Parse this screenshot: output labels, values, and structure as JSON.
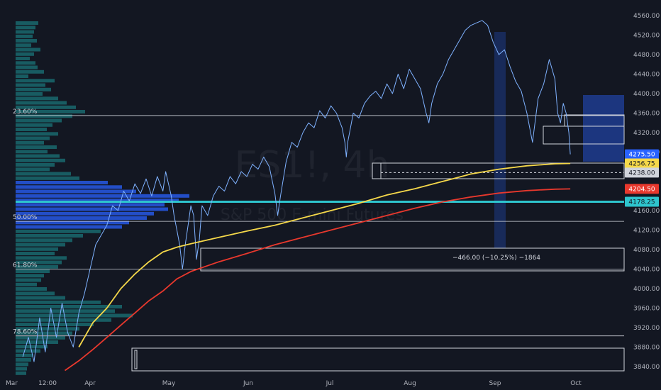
{
  "watermark": {
    "ticker": "ES1!, 4h",
    "name": "S&P 500 E-mini Futures"
  },
  "colors": {
    "background": "#131722",
    "price": "#7fb2ff",
    "sma_fast": "#f5d84a",
    "sma_slow": "#e8382d",
    "level_highlight": "#2ec5ce",
    "zone_blue": "#1e3a8a",
    "volume_profile_teal": "#1c8a8e",
    "volume_profile_blue": "#2962ff"
  },
  "chart_data": {
    "type": "line",
    "ylim": [
      3820,
      4580
    ],
    "x_ticks": [
      "Mar",
      "12:00",
      "Apr",
      "May",
      "Jun",
      "Jul",
      "Aug",
      "Sep",
      "Oct"
    ],
    "y_ticks": [
      4560.0,
      4520.0,
      4480.0,
      4440.0,
      4400.0,
      4360.0,
      4320.0,
      4280.0,
      4160.0,
      4120.0,
      4080.0,
      4040.0,
      4000.0,
      3960.0,
      3920.0,
      3880.0,
      3840.0
    ],
    "series": [
      {
        "key": "price",
        "points": [
          [
            0,
            3860
          ],
          [
            0.2,
            3900
          ],
          [
            0.4,
            3850
          ],
          [
            0.6,
            3940
          ],
          [
            0.8,
            3870
          ],
          [
            1.0,
            3960
          ],
          [
            1.2,
            3900
          ],
          [
            1.4,
            3970
          ],
          [
            1.6,
            3910
          ],
          [
            1.8,
            3880
          ],
          [
            2.0,
            3950
          ],
          [
            2.2,
            3990
          ],
          [
            2.4,
            4040
          ],
          [
            2.6,
            4090
          ],
          [
            2.8,
            4110
          ],
          [
            3.0,
            4130
          ],
          [
            3.2,
            4170
          ],
          [
            3.4,
            4160
          ],
          [
            3.6,
            4200
          ],
          [
            3.8,
            4180
          ],
          [
            4.0,
            4215
          ],
          [
            4.2,
            4195
          ],
          [
            4.4,
            4225
          ],
          [
            4.6,
            4190
          ],
          [
            4.8,
            4230
          ],
          [
            5.0,
            4200
          ],
          [
            5.1,
            4240
          ],
          [
            5.3,
            4190
          ],
          [
            5.4,
            4150
          ],
          [
            5.5,
            4120
          ],
          [
            5.6,
            4090
          ],
          [
            5.7,
            4040
          ],
          [
            5.8,
            4090
          ],
          [
            5.9,
            4130
          ],
          [
            6.0,
            4170
          ],
          [
            6.1,
            4150
          ],
          [
            6.2,
            4060
          ],
          [
            6.3,
            4100
          ],
          [
            6.4,
            4170
          ],
          [
            6.6,
            4150
          ],
          [
            6.8,
            4190
          ],
          [
            7.0,
            4210
          ],
          [
            7.2,
            4200
          ],
          [
            7.4,
            4230
          ],
          [
            7.6,
            4215
          ],
          [
            7.8,
            4240
          ],
          [
            8.0,
            4230
          ],
          [
            8.2,
            4255
          ],
          [
            8.4,
            4245
          ],
          [
            8.6,
            4270
          ],
          [
            8.8,
            4250
          ],
          [
            9.0,
            4195
          ],
          [
            9.1,
            4150
          ],
          [
            9.2,
            4190
          ],
          [
            9.4,
            4260
          ],
          [
            9.6,
            4300
          ],
          [
            9.8,
            4290
          ],
          [
            10.0,
            4320
          ],
          [
            10.2,
            4340
          ],
          [
            10.4,
            4330
          ],
          [
            10.6,
            4365
          ],
          [
            10.8,
            4350
          ],
          [
            11.0,
            4375
          ],
          [
            11.2,
            4360
          ],
          [
            11.4,
            4330
          ],
          [
            11.5,
            4300
          ],
          [
            11.55,
            4270
          ],
          [
            11.6,
            4300
          ],
          [
            11.7,
            4330
          ],
          [
            11.8,
            4360
          ],
          [
            12.0,
            4350
          ],
          [
            12.2,
            4380
          ],
          [
            12.4,
            4395
          ],
          [
            12.6,
            4405
          ],
          [
            12.8,
            4390
          ],
          [
            13.0,
            4420
          ],
          [
            13.2,
            4400
          ],
          [
            13.4,
            4440
          ],
          [
            13.6,
            4410
          ],
          [
            13.8,
            4450
          ],
          [
            14.0,
            4430
          ],
          [
            14.2,
            4410
          ],
          [
            14.4,
            4360
          ],
          [
            14.5,
            4340
          ],
          [
            14.6,
            4380
          ],
          [
            14.8,
            4420
          ],
          [
            15.0,
            4440
          ],
          [
            15.2,
            4470
          ],
          [
            15.4,
            4490
          ],
          [
            15.6,
            4510
          ],
          [
            15.8,
            4530
          ],
          [
            16.0,
            4540
          ],
          [
            16.2,
            4545
          ],
          [
            16.4,
            4550
          ],
          [
            16.6,
            4540
          ],
          [
            16.8,
            4505
          ],
          [
            17.0,
            4480
          ],
          [
            17.2,
            4490
          ],
          [
            17.4,
            4455
          ],
          [
            17.6,
            4425
          ],
          [
            17.8,
            4405
          ],
          [
            18.0,
            4360
          ],
          [
            18.2,
            4300
          ],
          [
            18.4,
            4390
          ],
          [
            18.6,
            4420
          ],
          [
            18.8,
            4470
          ],
          [
            19.0,
            4430
          ],
          [
            19.1,
            4360
          ],
          [
            19.2,
            4340
          ],
          [
            19.3,
            4380
          ],
          [
            19.4,
            4360
          ],
          [
            19.5,
            4320
          ],
          [
            19.55,
            4275.5
          ]
        ]
      },
      {
        "key": "sma_fast",
        "points": [
          [
            2.0,
            3880
          ],
          [
            2.5,
            3930
          ],
          [
            3.0,
            3960
          ],
          [
            3.5,
            4000
          ],
          [
            4.0,
            4030
          ],
          [
            4.5,
            4055
          ],
          [
            5.0,
            4075
          ],
          [
            5.5,
            4085
          ],
          [
            6.0,
            4092
          ],
          [
            7.0,
            4105
          ],
          [
            8.0,
            4118
          ],
          [
            9.0,
            4130
          ],
          [
            10.0,
            4145
          ],
          [
            11.0,
            4160
          ],
          [
            12.0,
            4175
          ],
          [
            13.0,
            4192
          ],
          [
            14.0,
            4205
          ],
          [
            15.0,
            4220
          ],
          [
            16.0,
            4235
          ],
          [
            17.0,
            4245
          ],
          [
            18.0,
            4252
          ],
          [
            19.0,
            4256
          ],
          [
            19.55,
            4256.75
          ]
        ]
      },
      {
        "key": "sma_slow",
        "points": [
          [
            1.5,
            3832
          ],
          [
            2.0,
            3852
          ],
          [
            2.5,
            3875
          ],
          [
            3.0,
            3900
          ],
          [
            3.5,
            3925
          ],
          [
            4.0,
            3950
          ],
          [
            4.5,
            3975
          ],
          [
            5.0,
            3995
          ],
          [
            5.5,
            4020
          ],
          [
            6.0,
            4035
          ],
          [
            7.0,
            4055
          ],
          [
            8.0,
            4072
          ],
          [
            9.0,
            4090
          ],
          [
            10.0,
            4105
          ],
          [
            11.0,
            4120
          ],
          [
            12.0,
            4135
          ],
          [
            13.0,
            4150
          ],
          [
            14.0,
            4165
          ],
          [
            15.0,
            4178
          ],
          [
            16.0,
            4188
          ],
          [
            17.0,
            4196
          ],
          [
            18.0,
            4201
          ],
          [
            19.0,
            4204
          ],
          [
            19.55,
            4204.5
          ]
        ]
      }
    ],
    "fib_levels": [
      {
        "label": "23.60%",
        "value": 4355
      },
      {
        "label": "50.00%",
        "value": 4138
      },
      {
        "label": "61.80%",
        "value": 4040
      },
      {
        "label": "78.60%",
        "value": 3903
      }
    ],
    "horizontal_levels": [
      4178.25,
      4238.0
    ],
    "price_badges": [
      {
        "value": "4275.50",
        "price": 4275.5,
        "bg": "#2962ff",
        "fg": "#ffffff"
      },
      {
        "value": "4256.75",
        "price": 4256.75,
        "bg": "#f5d84a",
        "fg": "#131722"
      },
      {
        "value": "4238.00",
        "price": 4238.0,
        "bg": "#d1d4dc",
        "fg": "#131722"
      },
      {
        "value": "4204.50",
        "price": 4204.5,
        "bg": "#e8382d",
        "fg": "#ffffff"
      },
      {
        "value": "4178.25",
        "price": 4178.25,
        "bg": "#2ec5ce",
        "fg": "#131722"
      }
    ],
    "measure_annotation": "−466.00 (−10.25%) −1864",
    "volume_profile": [
      32,
      28,
      26,
      24,
      30,
      22,
      35,
      26,
      20,
      28,
      31,
      40,
      18,
      55,
      42,
      50,
      38,
      60,
      72,
      85,
      98,
      80,
      65,
      52,
      44,
      60,
      48,
      40,
      58,
      45,
      62,
      70,
      55,
      48,
      78,
      90,
      130,
      150,
      170,
      245,
      230,
      210,
      215,
      195,
      185,
      160,
      150,
      120,
      95,
      80,
      70,
      60,
      55,
      72,
      65,
      60,
      48,
      40,
      36,
      30,
      44,
      55,
      70,
      120,
      150,
      140,
      165,
      135,
      110,
      90,
      80,
      70,
      60,
      45,
      35,
      25,
      22,
      18,
      16,
      15
    ]
  }
}
